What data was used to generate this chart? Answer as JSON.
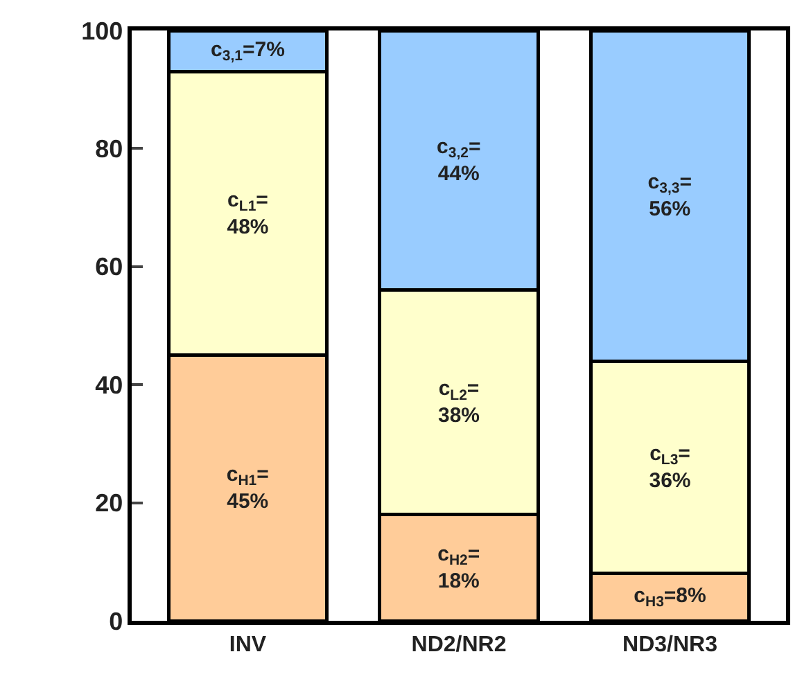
{
  "chart_data": {
    "type": "bar",
    "stacked": true,
    "categories": [
      "INV",
      "ND2/NR2",
      "ND3/NR3"
    ],
    "series": [
      {
        "color": "#ffcc99",
        "values": [
          45,
          18,
          8
        ],
        "value_labels": [
          "c$_{H1}$=\n45%",
          "c$_{H2}$=\n18%",
          "c$_{H3}$=8%"
        ]
      },
      {
        "color": "#ffffcc",
        "values": [
          48,
          38,
          36
        ],
        "value_labels": [
          "c$_{L1}$=\n48%",
          "c$_{L2}$=\n38%",
          "c$_{L3}$=\n36%"
        ]
      },
      {
        "color": "#99ccff",
        "values": [
          7,
          44,
          56
        ],
        "value_labels": [
          "c$_{3,1}$=7%",
          "c$_{3,2}$=\n44%",
          "c$_{3,3}$=\n56%"
        ]
      }
    ],
    "ylim": [
      0,
      100
    ],
    "yticks": [
      0,
      20,
      40,
      60,
      80,
      100
    ]
  }
}
